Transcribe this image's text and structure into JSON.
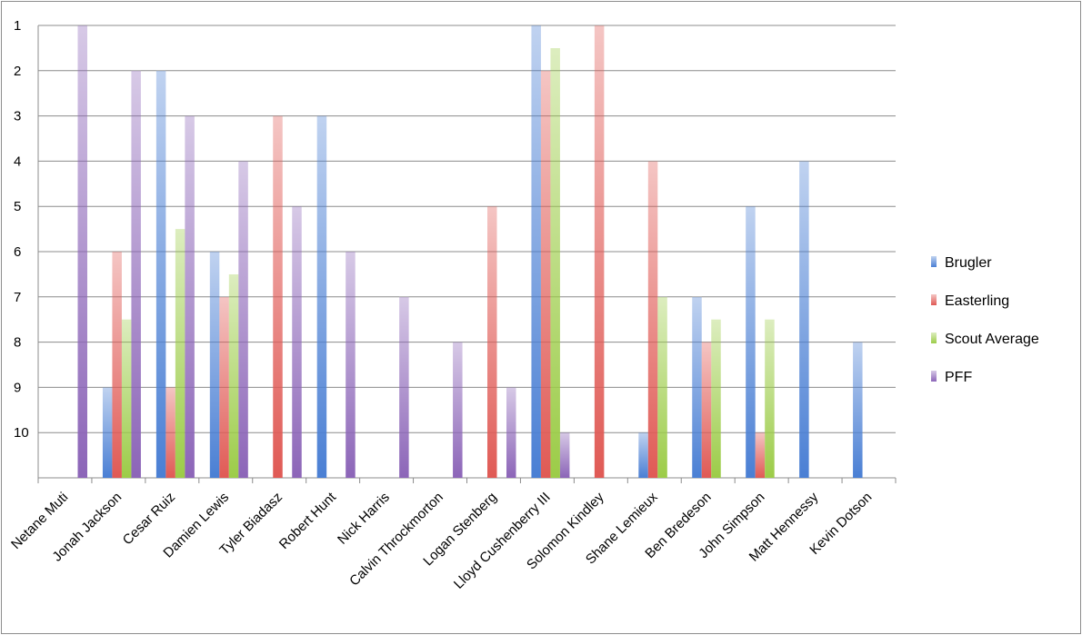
{
  "chart_data": {
    "type": "bar",
    "title": "",
    "xlabel": "",
    "ylabel": "",
    "y_axis": {
      "reversed": true,
      "ticks": [
        1,
        2,
        3,
        4,
        5,
        6,
        7,
        8,
        9,
        10
      ],
      "range": [
        1,
        11
      ]
    },
    "grid": true,
    "legend_position": "right",
    "categories": [
      "Netane Muti",
      "Jonah Jackson",
      "Cesar Ruiz",
      "Damien Lewis",
      "Tyler Biadasz",
      "Robert Hunt",
      "Nick Harris",
      "Calvin Throckmorton",
      "Logan Stenberg",
      "Lloyd Cushenberry III",
      "Solomon Kindley",
      "Shane Lemieux",
      "Ben Bredeson",
      "John Simpson",
      "Matt Hennessy",
      "Kevin Dotson"
    ],
    "series": [
      {
        "name": "Brugler",
        "color": "#4a7fd4",
        "values": [
          null,
          9,
          2,
          6,
          null,
          3,
          null,
          null,
          null,
          1,
          null,
          10,
          7,
          5,
          4,
          8
        ]
      },
      {
        "name": "Easterling",
        "color": "#e05a55",
        "values": [
          null,
          6,
          9,
          7,
          3,
          null,
          null,
          null,
          5,
          2,
          1,
          4,
          8,
          10,
          null,
          null
        ]
      },
      {
        "name": "Scout Average",
        "color": "#9ccc48",
        "values": [
          null,
          7.5,
          5.5,
          6.5,
          null,
          null,
          null,
          null,
          null,
          1.5,
          null,
          7,
          7.5,
          7.5,
          null,
          null
        ]
      },
      {
        "name": "PFF",
        "color": "#8c65b8",
        "values": [
          1,
          2,
          3,
          4,
          5,
          6,
          7,
          8,
          9,
          10,
          null,
          null,
          null,
          null,
          null,
          null
        ]
      }
    ]
  }
}
